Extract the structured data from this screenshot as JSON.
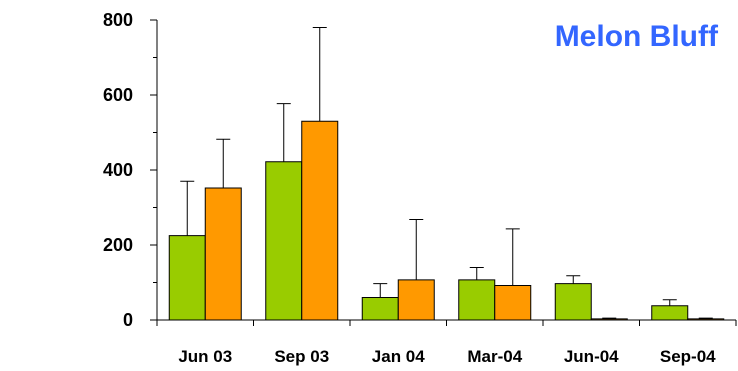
{
  "chart_data": {
    "type": "bar",
    "title": "Melon Bluff",
    "title_color": "#3366ff",
    "xlabel": "",
    "ylabel": "",
    "ylim": [
      0,
      800
    ],
    "yticks": [
      "0",
      "200",
      "400",
      "600",
      "800"
    ],
    "grid": false,
    "legend": "none",
    "error_bars": true,
    "categories": [
      "Jun 03",
      "Sep 03",
      "Jan 04",
      "Mar-04",
      "Jun-04",
      "Sep-04"
    ],
    "series": [
      {
        "color": "#99cc00",
        "values": [
          225,
          422,
          60,
          107,
          97,
          38
        ],
        "error_upper": [
          370,
          577,
          97,
          140,
          118,
          54
        ]
      },
      {
        "color": "#ff9900",
        "values": [
          352,
          530,
          107,
          92,
          3,
          3
        ],
        "error_upper": [
          482,
          780,
          268,
          243,
          5,
          5
        ]
      }
    ]
  }
}
